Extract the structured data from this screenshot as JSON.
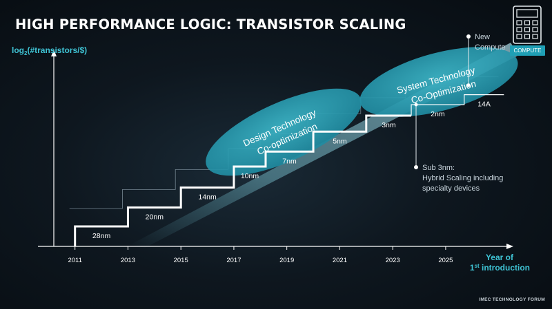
{
  "title": "HIGH PERFORMANCE LOGIC: TRANSISTOR SCALING",
  "footer": "IMEC TECHNOLOGY FORUM",
  "badge": "COMPUTE",
  "icons": {
    "badge_icon": "calculator-icon"
  },
  "colors": {
    "accent": "#3fc3d4",
    "ellipse": "#2aa0b4",
    "steps": "#ffffff",
    "text": "#c8d4dc"
  },
  "chart_data": {
    "type": "line",
    "ylabel_prefix": "log",
    "ylabel_sub": "2",
    "ylabel_rest": "(#transistors/$)",
    "xlabel_line1": "Year of",
    "xlabel_line2_main": "1",
    "xlabel_line2_sup": "st",
    "xlabel_line2_rest": " introduction",
    "xlim": [
      2010.2,
      2027.4
    ],
    "ylim": [
      0,
      10
    ],
    "x_ticks": [
      "2011",
      "2013",
      "2015",
      "2017",
      "2019",
      "2021",
      "2023",
      "2025"
    ],
    "nodes": [
      {
        "label": "28nm",
        "x_start": 2011,
        "x_end": 2013,
        "level": 1.0
      },
      {
        "label": "20nm",
        "x_start": 2013,
        "x_end": 2015,
        "level": 1.95
      },
      {
        "label": "14nm",
        "x_start": 2015,
        "x_end": 2017,
        "level": 2.95
      },
      {
        "label": "10nm",
        "x_start": 2017,
        "x_end": 2018.2,
        "level": 4.0
      },
      {
        "label": "7nm",
        "x_start": 2018.2,
        "x_end": 2020,
        "level": 4.75
      },
      {
        "label": "5nm",
        "x_start": 2020,
        "x_end": 2022,
        "level": 5.75
      },
      {
        "label": "3nm",
        "x_start": 2022,
        "x_end": 2023.7,
        "level": 6.55
      },
      {
        "label": "2nm",
        "x_start": 2023.7,
        "x_end": 2025.7,
        "level": 7.1
      },
      {
        "label": "14A",
        "x_start": 2025.7,
        "x_end": 2027.2,
        "level": 7.6
      }
    ],
    "regions": [
      {
        "label_line1": "Design Technology",
        "label_line2": "Co-optimization"
      },
      {
        "label_line1": "System Technology",
        "label_line2": "Co-Optimization"
      }
    ],
    "annotations": [
      {
        "lines": [
          "New",
          "Compute"
        ]
      },
      {
        "lines": [
          "Sub 3nm:",
          "Hybrid Scaling including",
          "specialty devices"
        ]
      }
    ]
  }
}
